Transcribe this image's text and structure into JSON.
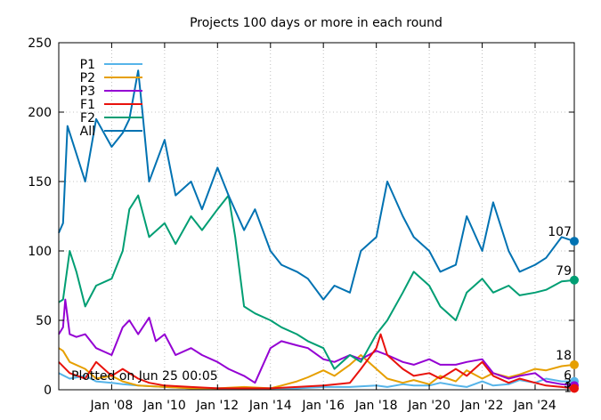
{
  "chart_data": {
    "type": "line",
    "title": "Projects 100 days or more in each round",
    "xlabel": "",
    "ylabel": "",
    "xlim": [
      "2006-01-01",
      "2025-06-25"
    ],
    "ylim": [
      0,
      250
    ],
    "y_ticks": [
      0,
      50,
      100,
      150,
      200,
      250
    ],
    "x_ticks": [
      {
        "date": "2008-01-01",
        "label": "Jan '08"
      },
      {
        "date": "2010-01-01",
        "label": "Jan '10"
      },
      {
        "date": "2012-01-01",
        "label": "Jan '12"
      },
      {
        "date": "2014-01-01",
        "label": "Jan '14"
      },
      {
        "date": "2016-01-01",
        "label": "Jan '16"
      },
      {
        "date": "2018-01-01",
        "label": "Jan '18"
      },
      {
        "date": "2020-01-01",
        "label": "Jan '20"
      },
      {
        "date": "2022-01-01",
        "label": "Jan '22"
      },
      {
        "date": "2024-01-01",
        "label": "Jan '24"
      }
    ],
    "grid": true,
    "legend": "top-left",
    "annotation": "Plotted on Jun 25 00:05",
    "end_labels": [
      {
        "series": "All",
        "value": 107
      },
      {
        "series": "F2",
        "value": 79
      },
      {
        "series": "P2",
        "value": 18
      },
      {
        "series": "P1",
        "value": 6
      },
      {
        "series": "P3",
        "value": 3
      },
      {
        "series": "F1",
        "value": 1
      }
    ],
    "series": [
      {
        "name": "P1",
        "color": "#56b4e9",
        "points": [
          [
            "2006-01-01",
            12
          ],
          [
            "2006-06-01",
            8
          ],
          [
            "2007-01-01",
            10
          ],
          [
            "2007-06-01",
            6
          ],
          [
            "2008-01-01",
            5
          ],
          [
            "2008-06-01",
            4
          ],
          [
            "2009-01-01",
            3
          ],
          [
            "2010-01-01",
            2
          ],
          [
            "2011-01-01",
            1
          ],
          [
            "2012-01-01",
            1
          ],
          [
            "2013-01-01",
            1
          ],
          [
            "2014-01-01",
            1
          ],
          [
            "2015-01-01",
            1
          ],
          [
            "2016-01-01",
            2
          ],
          [
            "2017-01-01",
            2
          ],
          [
            "2018-01-01",
            3
          ],
          [
            "2018-06-01",
            2
          ],
          [
            "2019-01-01",
            4
          ],
          [
            "2019-06-01",
            3
          ],
          [
            "2020-01-01",
            3
          ],
          [
            "2020-06-01",
            5
          ],
          [
            "2021-01-01",
            3
          ],
          [
            "2021-06-01",
            2
          ],
          [
            "2022-01-01",
            6
          ],
          [
            "2022-06-01",
            3
          ],
          [
            "2023-01-01",
            4
          ],
          [
            "2023-06-01",
            7
          ],
          [
            "2024-01-01",
            5
          ],
          [
            "2024-06-01",
            8
          ],
          [
            "2025-01-01",
            6
          ],
          [
            "2025-06-25",
            6
          ]
        ]
      },
      {
        "name": "P2",
        "color": "#e69f00",
        "points": [
          [
            "2006-01-01",
            30
          ],
          [
            "2006-03-01",
            28
          ],
          [
            "2006-06-01",
            20
          ],
          [
            "2007-01-01",
            15
          ],
          [
            "2007-06-01",
            8
          ],
          [
            "2008-01-01",
            10
          ],
          [
            "2008-06-01",
            6
          ],
          [
            "2009-01-01",
            3
          ],
          [
            "2010-01-01",
            2
          ],
          [
            "2011-01-01",
            1
          ],
          [
            "2012-01-01",
            1
          ],
          [
            "2013-01-01",
            2
          ],
          [
            "2014-01-01",
            1
          ],
          [
            "2014-06-01",
            3
          ],
          [
            "2015-01-01",
            6
          ],
          [
            "2015-06-01",
            9
          ],
          [
            "2016-01-01",
            14
          ],
          [
            "2016-06-01",
            10
          ],
          [
            "2017-01-01",
            18
          ],
          [
            "2017-06-01",
            25
          ],
          [
            "2018-01-01",
            15
          ],
          [
            "2018-06-01",
            8
          ],
          [
            "2019-01-01",
            5
          ],
          [
            "2019-06-01",
            7
          ],
          [
            "2020-01-01",
            4
          ],
          [
            "2020-06-01",
            10
          ],
          [
            "2021-01-01",
            6
          ],
          [
            "2021-06-01",
            14
          ],
          [
            "2022-01-01",
            8
          ],
          [
            "2022-06-01",
            12
          ],
          [
            "2023-01-01",
            9
          ],
          [
            "2023-06-01",
            11
          ],
          [
            "2024-01-01",
            15
          ],
          [
            "2024-06-01",
            14
          ],
          [
            "2025-01-01",
            17
          ],
          [
            "2025-06-25",
            18
          ]
        ]
      },
      {
        "name": "P3",
        "color": "#9400d3",
        "points": [
          [
            "2006-01-01",
            40
          ],
          [
            "2006-03-01",
            45
          ],
          [
            "2006-04-01",
            65
          ],
          [
            "2006-06-01",
            40
          ],
          [
            "2006-09-01",
            38
          ],
          [
            "2007-01-01",
            40
          ],
          [
            "2007-06-01",
            30
          ],
          [
            "2008-01-01",
            25
          ],
          [
            "2008-06-01",
            45
          ],
          [
            "2008-09-01",
            50
          ],
          [
            "2009-01-01",
            40
          ],
          [
            "2009-06-01",
            52
          ],
          [
            "2009-09-01",
            35
          ],
          [
            "2010-01-01",
            40
          ],
          [
            "2010-06-01",
            25
          ],
          [
            "2011-01-01",
            30
          ],
          [
            "2011-06-01",
            25
          ],
          [
            "2012-01-01",
            20
          ],
          [
            "2012-06-01",
            15
          ],
          [
            "2013-01-01",
            10
          ],
          [
            "2013-06-01",
            5
          ],
          [
            "2014-01-01",
            30
          ],
          [
            "2014-06-01",
            35
          ],
          [
            "2015-01-01",
            32
          ],
          [
            "2015-06-01",
            30
          ],
          [
            "2016-01-01",
            22
          ],
          [
            "2016-06-01",
            20
          ],
          [
            "2017-01-01",
            25
          ],
          [
            "2017-06-01",
            22
          ],
          [
            "2018-01-01",
            28
          ],
          [
            "2018-06-01",
            25
          ],
          [
            "2019-01-01",
            20
          ],
          [
            "2019-06-01",
            18
          ],
          [
            "2020-01-01",
            22
          ],
          [
            "2020-06-01",
            18
          ],
          [
            "2021-01-01",
            18
          ],
          [
            "2021-06-01",
            20
          ],
          [
            "2022-01-01",
            22
          ],
          [
            "2022-06-01",
            12
          ],
          [
            "2023-01-01",
            8
          ],
          [
            "2023-06-01",
            10
          ],
          [
            "2024-01-01",
            12
          ],
          [
            "2024-06-01",
            6
          ],
          [
            "2025-01-01",
            4
          ],
          [
            "2025-06-25",
            3
          ]
        ]
      },
      {
        "name": "F1",
        "color": "#e8120c",
        "points": [
          [
            "2006-01-01",
            20
          ],
          [
            "2006-06-01",
            12
          ],
          [
            "2007-01-01",
            8
          ],
          [
            "2007-06-01",
            20
          ],
          [
            "2008-01-01",
            10
          ],
          [
            "2008-06-01",
            15
          ],
          [
            "2009-01-01",
            8
          ],
          [
            "2009-06-01",
            5
          ],
          [
            "2010-01-01",
            3
          ],
          [
            "2011-01-01",
            2
          ],
          [
            "2012-01-01",
            1
          ],
          [
            "2013-01-01",
            1
          ],
          [
            "2014-01-01",
            1
          ],
          [
            "2015-01-01",
            2
          ],
          [
            "2016-01-01",
            3
          ],
          [
            "2017-01-01",
            5
          ],
          [
            "2017-06-01",
            15
          ],
          [
            "2018-01-01",
            30
          ],
          [
            "2018-03-01",
            40
          ],
          [
            "2018-06-01",
            25
          ],
          [
            "2019-01-01",
            15
          ],
          [
            "2019-06-01",
            10
          ],
          [
            "2020-01-01",
            12
          ],
          [
            "2020-06-01",
            8
          ],
          [
            "2021-01-01",
            15
          ],
          [
            "2021-06-01",
            10
          ],
          [
            "2022-01-01",
            20
          ],
          [
            "2022-06-01",
            10
          ],
          [
            "2023-01-01",
            5
          ],
          [
            "2023-06-01",
            8
          ],
          [
            "2024-01-01",
            5
          ],
          [
            "2024-06-01",
            3
          ],
          [
            "2025-01-01",
            2
          ],
          [
            "2025-06-25",
            1
          ]
        ]
      },
      {
        "name": "F2",
        "color": "#009e73",
        "points": [
          [
            "2006-01-01",
            63
          ],
          [
            "2006-03-01",
            65
          ],
          [
            "2006-06-01",
            100
          ],
          [
            "2006-09-01",
            85
          ],
          [
            "2007-01-01",
            60
          ],
          [
            "2007-06-01",
            75
          ],
          [
            "2008-01-01",
            80
          ],
          [
            "2008-06-01",
            100
          ],
          [
            "2008-09-01",
            130
          ],
          [
            "2009-01-01",
            140
          ],
          [
            "2009-06-01",
            110
          ],
          [
            "2010-01-01",
            120
          ],
          [
            "2010-06-01",
            105
          ],
          [
            "2011-01-01",
            125
          ],
          [
            "2011-06-01",
            115
          ],
          [
            "2012-01-01",
            130
          ],
          [
            "2012-06-01",
            140
          ],
          [
            "2012-09-01",
            110
          ],
          [
            "2013-01-01",
            60
          ],
          [
            "2013-06-01",
            55
          ],
          [
            "2014-01-01",
            50
          ],
          [
            "2014-06-01",
            45
          ],
          [
            "2015-01-01",
            40
          ],
          [
            "2015-06-01",
            35
          ],
          [
            "2016-01-01",
            30
          ],
          [
            "2016-06-01",
            15
          ],
          [
            "2017-01-01",
            25
          ],
          [
            "2017-06-01",
            20
          ],
          [
            "2018-01-01",
            40
          ],
          [
            "2018-06-01",
            50
          ],
          [
            "2019-01-01",
            70
          ],
          [
            "2019-06-01",
            85
          ],
          [
            "2020-01-01",
            75
          ],
          [
            "2020-06-01",
            60
          ],
          [
            "2021-01-01",
            50
          ],
          [
            "2021-06-01",
            70
          ],
          [
            "2022-01-01",
            80
          ],
          [
            "2022-06-01",
            70
          ],
          [
            "2023-01-01",
            75
          ],
          [
            "2023-06-01",
            68
          ],
          [
            "2024-01-01",
            70
          ],
          [
            "2024-06-01",
            72
          ],
          [
            "2025-01-01",
            78
          ],
          [
            "2025-06-25",
            79
          ]
        ]
      },
      {
        "name": "All",
        "color": "#0072b2",
        "points": [
          [
            "2006-01-01",
            113
          ],
          [
            "2006-03-01",
            120
          ],
          [
            "2006-05-01",
            190
          ],
          [
            "2006-09-01",
            170
          ],
          [
            "2007-01-01",
            150
          ],
          [
            "2007-06-01",
            195
          ],
          [
            "2008-01-01",
            175
          ],
          [
            "2008-06-01",
            185
          ],
          [
            "2008-09-01",
            195
          ],
          [
            "2009-01-01",
            230
          ],
          [
            "2009-03-01",
            200
          ],
          [
            "2009-06-01",
            150
          ],
          [
            "2010-01-01",
            180
          ],
          [
            "2010-06-01",
            140
          ],
          [
            "2011-01-01",
            150
          ],
          [
            "2011-06-01",
            130
          ],
          [
            "2012-01-01",
            160
          ],
          [
            "2012-06-01",
            140
          ],
          [
            "2013-01-01",
            115
          ],
          [
            "2013-06-01",
            130
          ],
          [
            "2014-01-01",
            100
          ],
          [
            "2014-06-01",
            90
          ],
          [
            "2015-01-01",
            85
          ],
          [
            "2015-06-01",
            80
          ],
          [
            "2016-01-01",
            65
          ],
          [
            "2016-06-01",
            75
          ],
          [
            "2017-01-01",
            70
          ],
          [
            "2017-06-01",
            100
          ],
          [
            "2018-01-01",
            110
          ],
          [
            "2018-06-01",
            150
          ],
          [
            "2019-01-01",
            125
          ],
          [
            "2019-06-01",
            110
          ],
          [
            "2020-01-01",
            100
          ],
          [
            "2020-06-01",
            85
          ],
          [
            "2021-01-01",
            90
          ],
          [
            "2021-06-01",
            125
          ],
          [
            "2022-01-01",
            100
          ],
          [
            "2022-06-01",
            135
          ],
          [
            "2023-01-01",
            100
          ],
          [
            "2023-06-01",
            85
          ],
          [
            "2024-01-01",
            90
          ],
          [
            "2024-06-01",
            95
          ],
          [
            "2025-01-01",
            110
          ],
          [
            "2025-06-25",
            107
          ]
        ]
      }
    ]
  }
}
